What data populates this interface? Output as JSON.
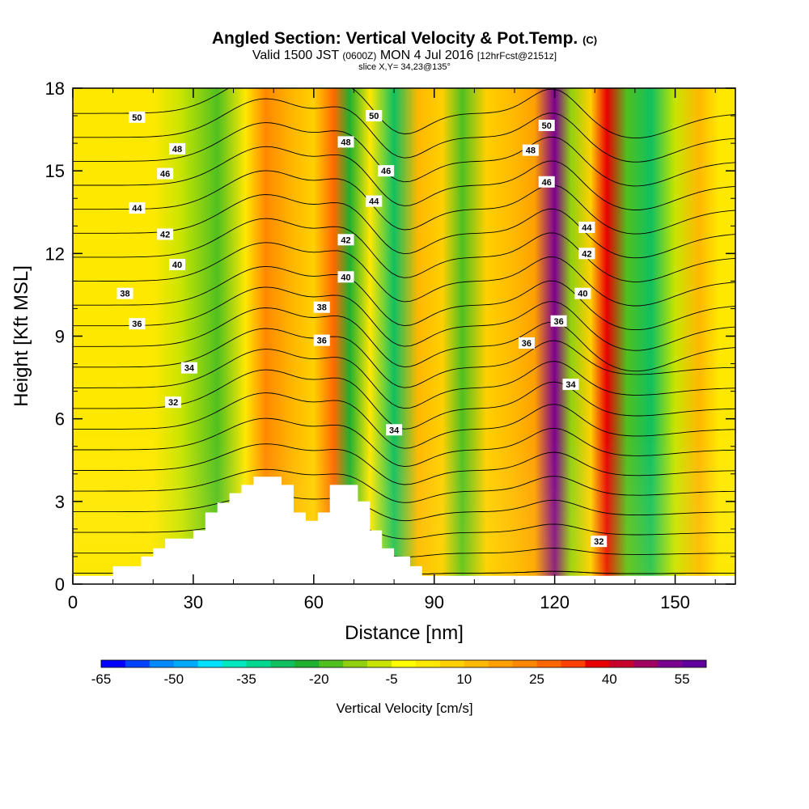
{
  "header": {
    "title": "Angled Section: Vertical Velocity & Pot.Temp.",
    "title_suffix": "(C)",
    "valid_prefix": "Valid 1500 JST",
    "valid_utc": "(0600Z)",
    "valid_date": "MON 4 Jul 2016",
    "forecast": "[12hrFcst@2151z]",
    "slice": "slice X,Y= 34,23@135°"
  },
  "chart_data": {
    "type": "heatmap",
    "xlabel": "Distance [nm]",
    "ylabel": "Height [Kft MSL]",
    "xlim": [
      0,
      165
    ],
    "ylim": [
      0,
      18
    ],
    "x_ticks": [
      "0",
      "30",
      "60",
      "90",
      "120",
      "150"
    ],
    "y_ticks": [
      "0",
      "3",
      "6",
      "9",
      "12",
      "15",
      "18"
    ],
    "colorbar": {
      "label": "Vertical Velocity [cm/s]",
      "min": -65,
      "max": 60,
      "step": 5,
      "tick_labels": [
        "-65",
        "-50",
        "-35",
        "-20",
        "-5",
        "10",
        "25",
        "40",
        "55"
      ],
      "colors": [
        "#0000ff",
        "#0044ff",
        "#0088ff",
        "#00aaff",
        "#00e0ff",
        "#00e8c0",
        "#00d890",
        "#10c060",
        "#20b030",
        "#50c020",
        "#90d010",
        "#c8e400",
        "#ffff00",
        "#ffe800",
        "#ffd000",
        "#ffb800",
        "#ffa000",
        "#ff8800",
        "#ff6800",
        "#ff4000",
        "#e80000",
        "#c8002c",
        "#a00060",
        "#7c0090",
        "#60009c"
      ]
    },
    "vertical_velocity_columns": [
      {
        "x": 0,
        "w": 0
      },
      {
        "x": 10,
        "w": 3
      },
      {
        "x": 20,
        "w": 1
      },
      {
        "x": 27,
        "w": -10
      },
      {
        "x": 36,
        "w": -18
      },
      {
        "x": 43,
        "w": 2
      },
      {
        "x": 48,
        "w": 22
      },
      {
        "x": 55,
        "w": 12
      },
      {
        "x": 60,
        "w": 8
      },
      {
        "x": 65,
        "w": 28
      },
      {
        "x": 69,
        "w": -22
      },
      {
        "x": 74,
        "w": 4
      },
      {
        "x": 80,
        "w": -30
      },
      {
        "x": 86,
        "w": 14
      },
      {
        "x": 92,
        "w": 6
      },
      {
        "x": 97,
        "w": -16
      },
      {
        "x": 103,
        "w": 5
      },
      {
        "x": 110,
        "w": 10
      },
      {
        "x": 115,
        "w": 16
      },
      {
        "x": 120,
        "w": 50
      },
      {
        "x": 124,
        "w": -12
      },
      {
        "x": 129,
        "w": 8
      },
      {
        "x": 133,
        "w": 35
      },
      {
        "x": 138,
        "w": -18
      },
      {
        "x": 144,
        "w": -26
      },
      {
        "x": 150,
        "w": -8
      },
      {
        "x": 156,
        "w": 10
      },
      {
        "x": 161,
        "w": 3
      },
      {
        "x": 165,
        "w": 2
      }
    ],
    "pot_temp_labels": [
      {
        "label": "50",
        "x": 16,
        "y": 16.95
      },
      {
        "label": "48",
        "x": 26,
        "y": 15.8
      },
      {
        "label": "46",
        "x": 23,
        "y": 14.9
      },
      {
        "label": "44",
        "x": 16,
        "y": 13.65
      },
      {
        "label": "42",
        "x": 23,
        "y": 12.7
      },
      {
        "label": "40",
        "x": 26,
        "y": 11.6
      },
      {
        "label": "38",
        "x": 13,
        "y": 10.55
      },
      {
        "label": "36",
        "x": 16,
        "y": 9.45
      },
      {
        "label": "34",
        "x": 29,
        "y": 7.85
      },
      {
        "label": "32",
        "x": 25,
        "y": 6.6
      },
      {
        "label": "50",
        "x": 75,
        "y": 17.0
      },
      {
        "label": "48",
        "x": 68,
        "y": 16.05
      },
      {
        "label": "46",
        "x": 78,
        "y": 15.0
      },
      {
        "label": "44",
        "x": 75,
        "y": 13.9
      },
      {
        "label": "42",
        "x": 68,
        "y": 12.5
      },
      {
        "label": "40",
        "x": 68,
        "y": 11.15
      },
      {
        "label": "38",
        "x": 62,
        "y": 10.05
      },
      {
        "label": "36",
        "x": 62,
        "y": 8.85
      },
      {
        "label": "34",
        "x": 80,
        "y": 5.6
      },
      {
        "label": "50",
        "x": 118,
        "y": 16.65
      },
      {
        "label": "48",
        "x": 114,
        "y": 15.75
      },
      {
        "label": "46",
        "x": 118,
        "y": 14.6
      },
      {
        "label": "44",
        "x": 128,
        "y": 12.95
      },
      {
        "label": "42",
        "x": 128,
        "y": 12.0
      },
      {
        "label": "40",
        "x": 127,
        "y": 10.55
      },
      {
        "label": "36",
        "x": 121,
        "y": 9.55
      },
      {
        "label": "36",
        "x": 113,
        "y": 8.75
      },
      {
        "label": "34",
        "x": 124,
        "y": 7.25
      },
      {
        "label": "32",
        "x": 131,
        "y": 1.55
      }
    ],
    "terrain_profile": [
      [
        0,
        0.3
      ],
      [
        10,
        0.3
      ],
      [
        10,
        0.65
      ],
      [
        17,
        0.65
      ],
      [
        17,
        1.0
      ],
      [
        20,
        1.0
      ],
      [
        20,
        1.3
      ],
      [
        23,
        1.3
      ],
      [
        23,
        1.65
      ],
      [
        30,
        1.65
      ],
      [
        30,
        1.95
      ],
      [
        33,
        1.95
      ],
      [
        33,
        2.6
      ],
      [
        36,
        2.6
      ],
      [
        36,
        2.95
      ],
      [
        39,
        2.95
      ],
      [
        39,
        3.3
      ],
      [
        42,
        3.3
      ],
      [
        42,
        3.6
      ],
      [
        45,
        3.6
      ],
      [
        45,
        3.9
      ],
      [
        52,
        3.9
      ],
      [
        52,
        3.6
      ],
      [
        55,
        3.6
      ],
      [
        55,
        2.6
      ],
      [
        58,
        2.6
      ],
      [
        58,
        2.3
      ],
      [
        61,
        2.3
      ],
      [
        61,
        2.6
      ],
      [
        64,
        2.6
      ],
      [
        64,
        3.6
      ],
      [
        71,
        3.6
      ],
      [
        71,
        3.0
      ],
      [
        74,
        3.0
      ],
      [
        74,
        1.95
      ],
      [
        77,
        1.95
      ],
      [
        77,
        1.3
      ],
      [
        80,
        1.3
      ],
      [
        80,
        1.0
      ],
      [
        84,
        1.0
      ],
      [
        84,
        0.65
      ],
      [
        87,
        0.65
      ],
      [
        87,
        0.3
      ],
      [
        165,
        0.3
      ]
    ]
  }
}
